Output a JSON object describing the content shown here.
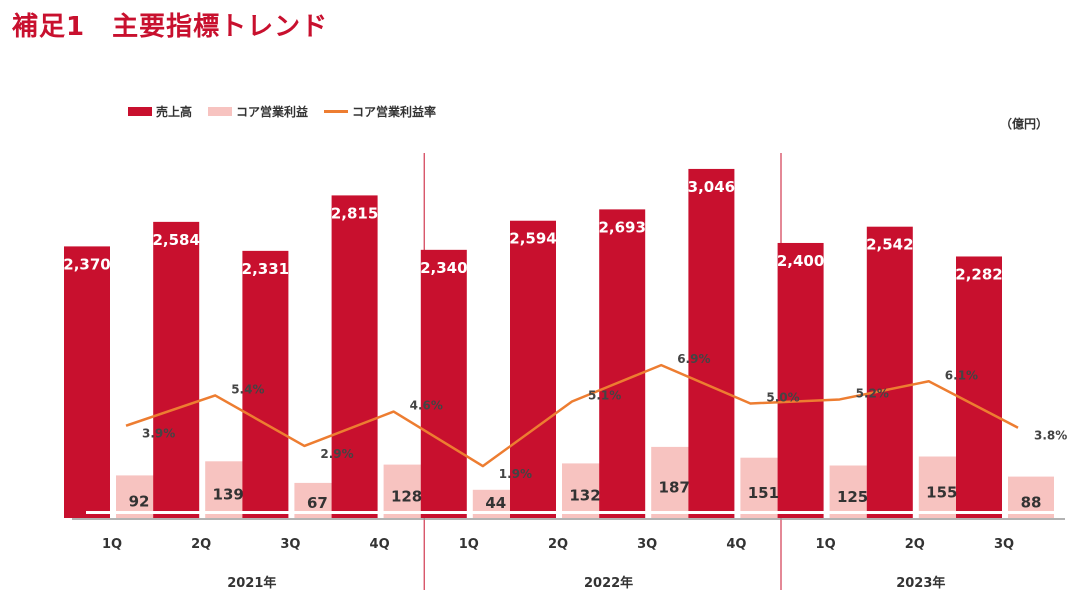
{
  "header": {
    "title": "補足1　主要指標トレンド"
  },
  "unit": "（億円）",
  "colors": {
    "sales": "#c8102e",
    "core": "#f7c3c0",
    "rate": "#ed7d31",
    "divider": "#c8102e",
    "axis": "#999999"
  },
  "chart_data": {
    "type": "bar",
    "title": "補足1　主要指標トレンド",
    "unit": "（億円）",
    "legend_position": "top-left",
    "categories": [
      "1Q",
      "2Q",
      "3Q",
      "4Q",
      "1Q",
      "2Q",
      "3Q",
      "4Q",
      "1Q",
      "2Q",
      "3Q"
    ],
    "groups": [
      {
        "label": "2021年",
        "count": 4
      },
      {
        "label": "2022年",
        "count": 4
      },
      {
        "label": "2023年",
        "count": 3
      }
    ],
    "series": [
      {
        "name": "売上高",
        "type": "bar",
        "values": [
          2370,
          2584,
          2331,
          2815,
          2340,
          2594,
          2693,
          3046,
          2400,
          2542,
          2282
        ],
        "labels": [
          "2,370",
          "2,584",
          "2,331",
          "2,815",
          "2,340",
          "2,594",
          "2,693",
          "3,046",
          "2,400",
          "2,542",
          "2,282"
        ]
      },
      {
        "name": "コア営業利益",
        "type": "bar",
        "values": [
          92,
          139,
          67,
          128,
          44,
          132,
          187,
          151,
          125,
          155,
          88
        ],
        "labels": [
          "92",
          "139",
          "67",
          "128",
          "44",
          "132",
          "187",
          "151",
          "125",
          "155",
          "88"
        ]
      },
      {
        "name": "コア営業利益率",
        "type": "line",
        "values": [
          3.9,
          5.4,
          2.9,
          4.6,
          1.9,
          5.1,
          6.9,
          5.0,
          5.2,
          6.1,
          3.8
        ],
        "labels": [
          "3.9%",
          "5.4%",
          "2.9%",
          "4.6%",
          "1.9%",
          "5.1%",
          "6.9%",
          "5.0%",
          "5.2%",
          "6.1%",
          "3.8%"
        ]
      }
    ]
  }
}
